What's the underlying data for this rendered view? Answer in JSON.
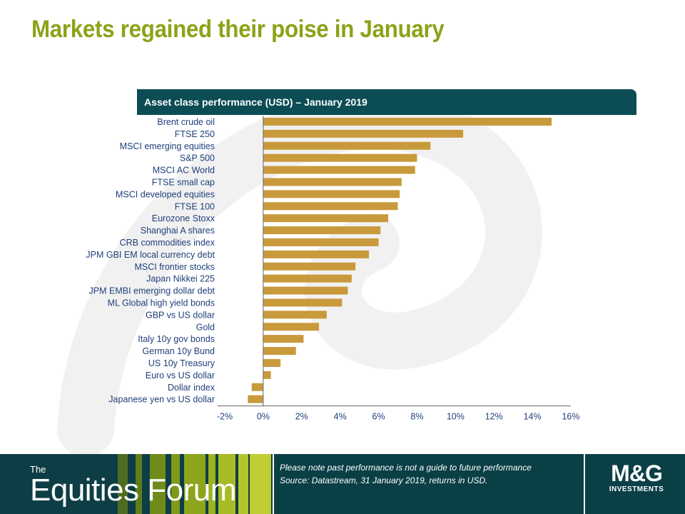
{
  "title": "Markets regained their poise in January",
  "chart_data": {
    "type": "bar",
    "orientation": "horizontal",
    "title": "Asset class performance (USD) – January 2019",
    "categories": [
      "Brent crude oil",
      "FTSE 250",
      "MSCI emerging equities",
      "S&P 500",
      "MSCI AC World",
      "FTSE small cap",
      "MSCI developed equities",
      "FTSE 100",
      "Eurozone Stoxx",
      "Shanghai A shares",
      "CRB commodities index",
      "JPM GBI EM local currency debt",
      "MSCI frontier stocks",
      "Japan Nikkei 225",
      "JPM EMBI emerging dollar debt",
      "ML Global high yield bonds",
      "GBP vs US dollar",
      "Gold",
      "Italy 10y gov bonds",
      "German 10y Bund",
      "US 10y Treasury",
      "Euro vs US dollar",
      "Dollar index",
      "Japanese yen vs US dollar"
    ],
    "values": [
      15.0,
      10.4,
      8.7,
      8.0,
      7.9,
      7.2,
      7.1,
      7.0,
      6.5,
      6.1,
      6.0,
      5.5,
      4.8,
      4.6,
      4.4,
      4.1,
      3.3,
      2.9,
      2.1,
      1.7,
      0.9,
      0.4,
      -0.6,
      -0.8
    ],
    "xlim": [
      -2,
      16
    ],
    "xticks": [
      "-2%",
      "0%",
      "2%",
      "4%",
      "6%",
      "8%",
      "10%",
      "12%",
      "14%",
      "16%"
    ],
    "bar_color": "#c99a3c"
  },
  "footer": {
    "brand_small": "The",
    "brand_big": "Equities Forum",
    "note_line1": "Please note past performance is not a guide to future performance",
    "note_line2": "Source: Datastream, 31 January 2019, returns in USD.",
    "logo_main": "M&G",
    "logo_sub": "INVESTMENTS"
  }
}
